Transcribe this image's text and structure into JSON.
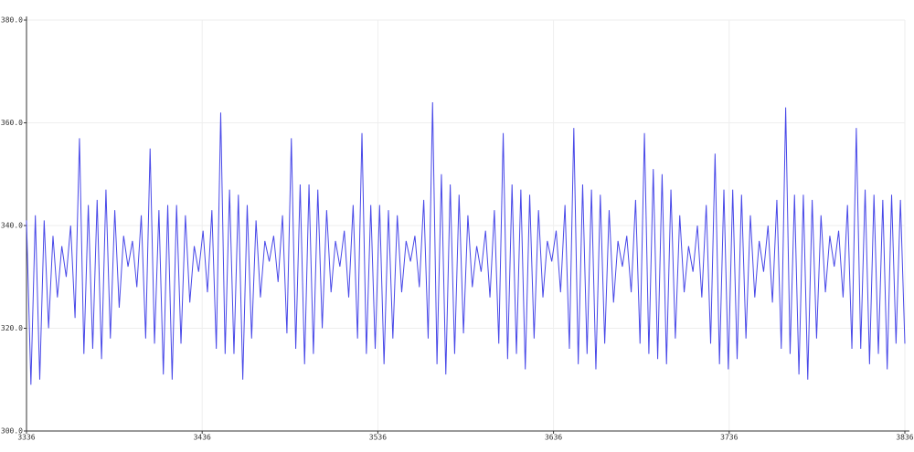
{
  "chart_data": {
    "type": "line",
    "xlim": [
      3336,
      3836
    ],
    "xticks": [
      3336,
      3436,
      3536,
      3636,
      3736,
      3836
    ],
    "ylim": [
      300,
      380
    ],
    "yticks": [
      {
        "value": 300,
        "label": "300.0"
      },
      {
        "value": 320,
        "label": "320.0"
      },
      {
        "value": 340,
        "label": "340.0"
      },
      {
        "value": 360,
        "label": "360.0"
      },
      {
        "value": 380,
        "label": "380.0"
      }
    ],
    "grid": true,
    "color": "#4848e8",
    "values": [
      341,
      309,
      342,
      310,
      341,
      320,
      338,
      326,
      336,
      330,
      340,
      322,
      357,
      315,
      344,
      316,
      345,
      314,
      347,
      318,
      343,
      324,
      338,
      332,
      337,
      328,
      342,
      318,
      355,
      317,
      343,
      311,
      344,
      310,
      344,
      317,
      342,
      325,
      336,
      331,
      339,
      327,
      343,
      316,
      362,
      315,
      347,
      315,
      346,
      310,
      344,
      318,
      341,
      326,
      337,
      333,
      338,
      329,
      342,
      319,
      357,
      316,
      348,
      313,
      348,
      315,
      347,
      320,
      343,
      327,
      337,
      332,
      339,
      326,
      344,
      318,
      358,
      315,
      344,
      316,
      344,
      313,
      343,
      318,
      342,
      327,
      337,
      333,
      338,
      328,
      345,
      318,
      364,
      313,
      350,
      311,
      348,
      315,
      346,
      319,
      342,
      328,
      336,
      331,
      339,
      326,
      343,
      317,
      358,
      314,
      348,
      315,
      347,
      312,
      346,
      318,
      343,
      326,
      337,
      333,
      339,
      327,
      344,
      316,
      359,
      313,
      348,
      315,
      347,
      312,
      346,
      317,
      343,
      325,
      337,
      332,
      338,
      327,
      345,
      317,
      358,
      315,
      351,
      314,
      350,
      313,
      347,
      318,
      342,
      327,
      336,
      331,
      340,
      326,
      344,
      317,
      354,
      313,
      347,
      312,
      347,
      314,
      346,
      318,
      342,
      326,
      337,
      331,
      340,
      325,
      345,
      316,
      363,
      315,
      346,
      311,
      346,
      310,
      345,
      318,
      342,
      327,
      338,
      332,
      339,
      326,
      344,
      316,
      359,
      316,
      347,
      313,
      346,
      315,
      345,
      312,
      346,
      317,
      345,
      317
    ]
  }
}
